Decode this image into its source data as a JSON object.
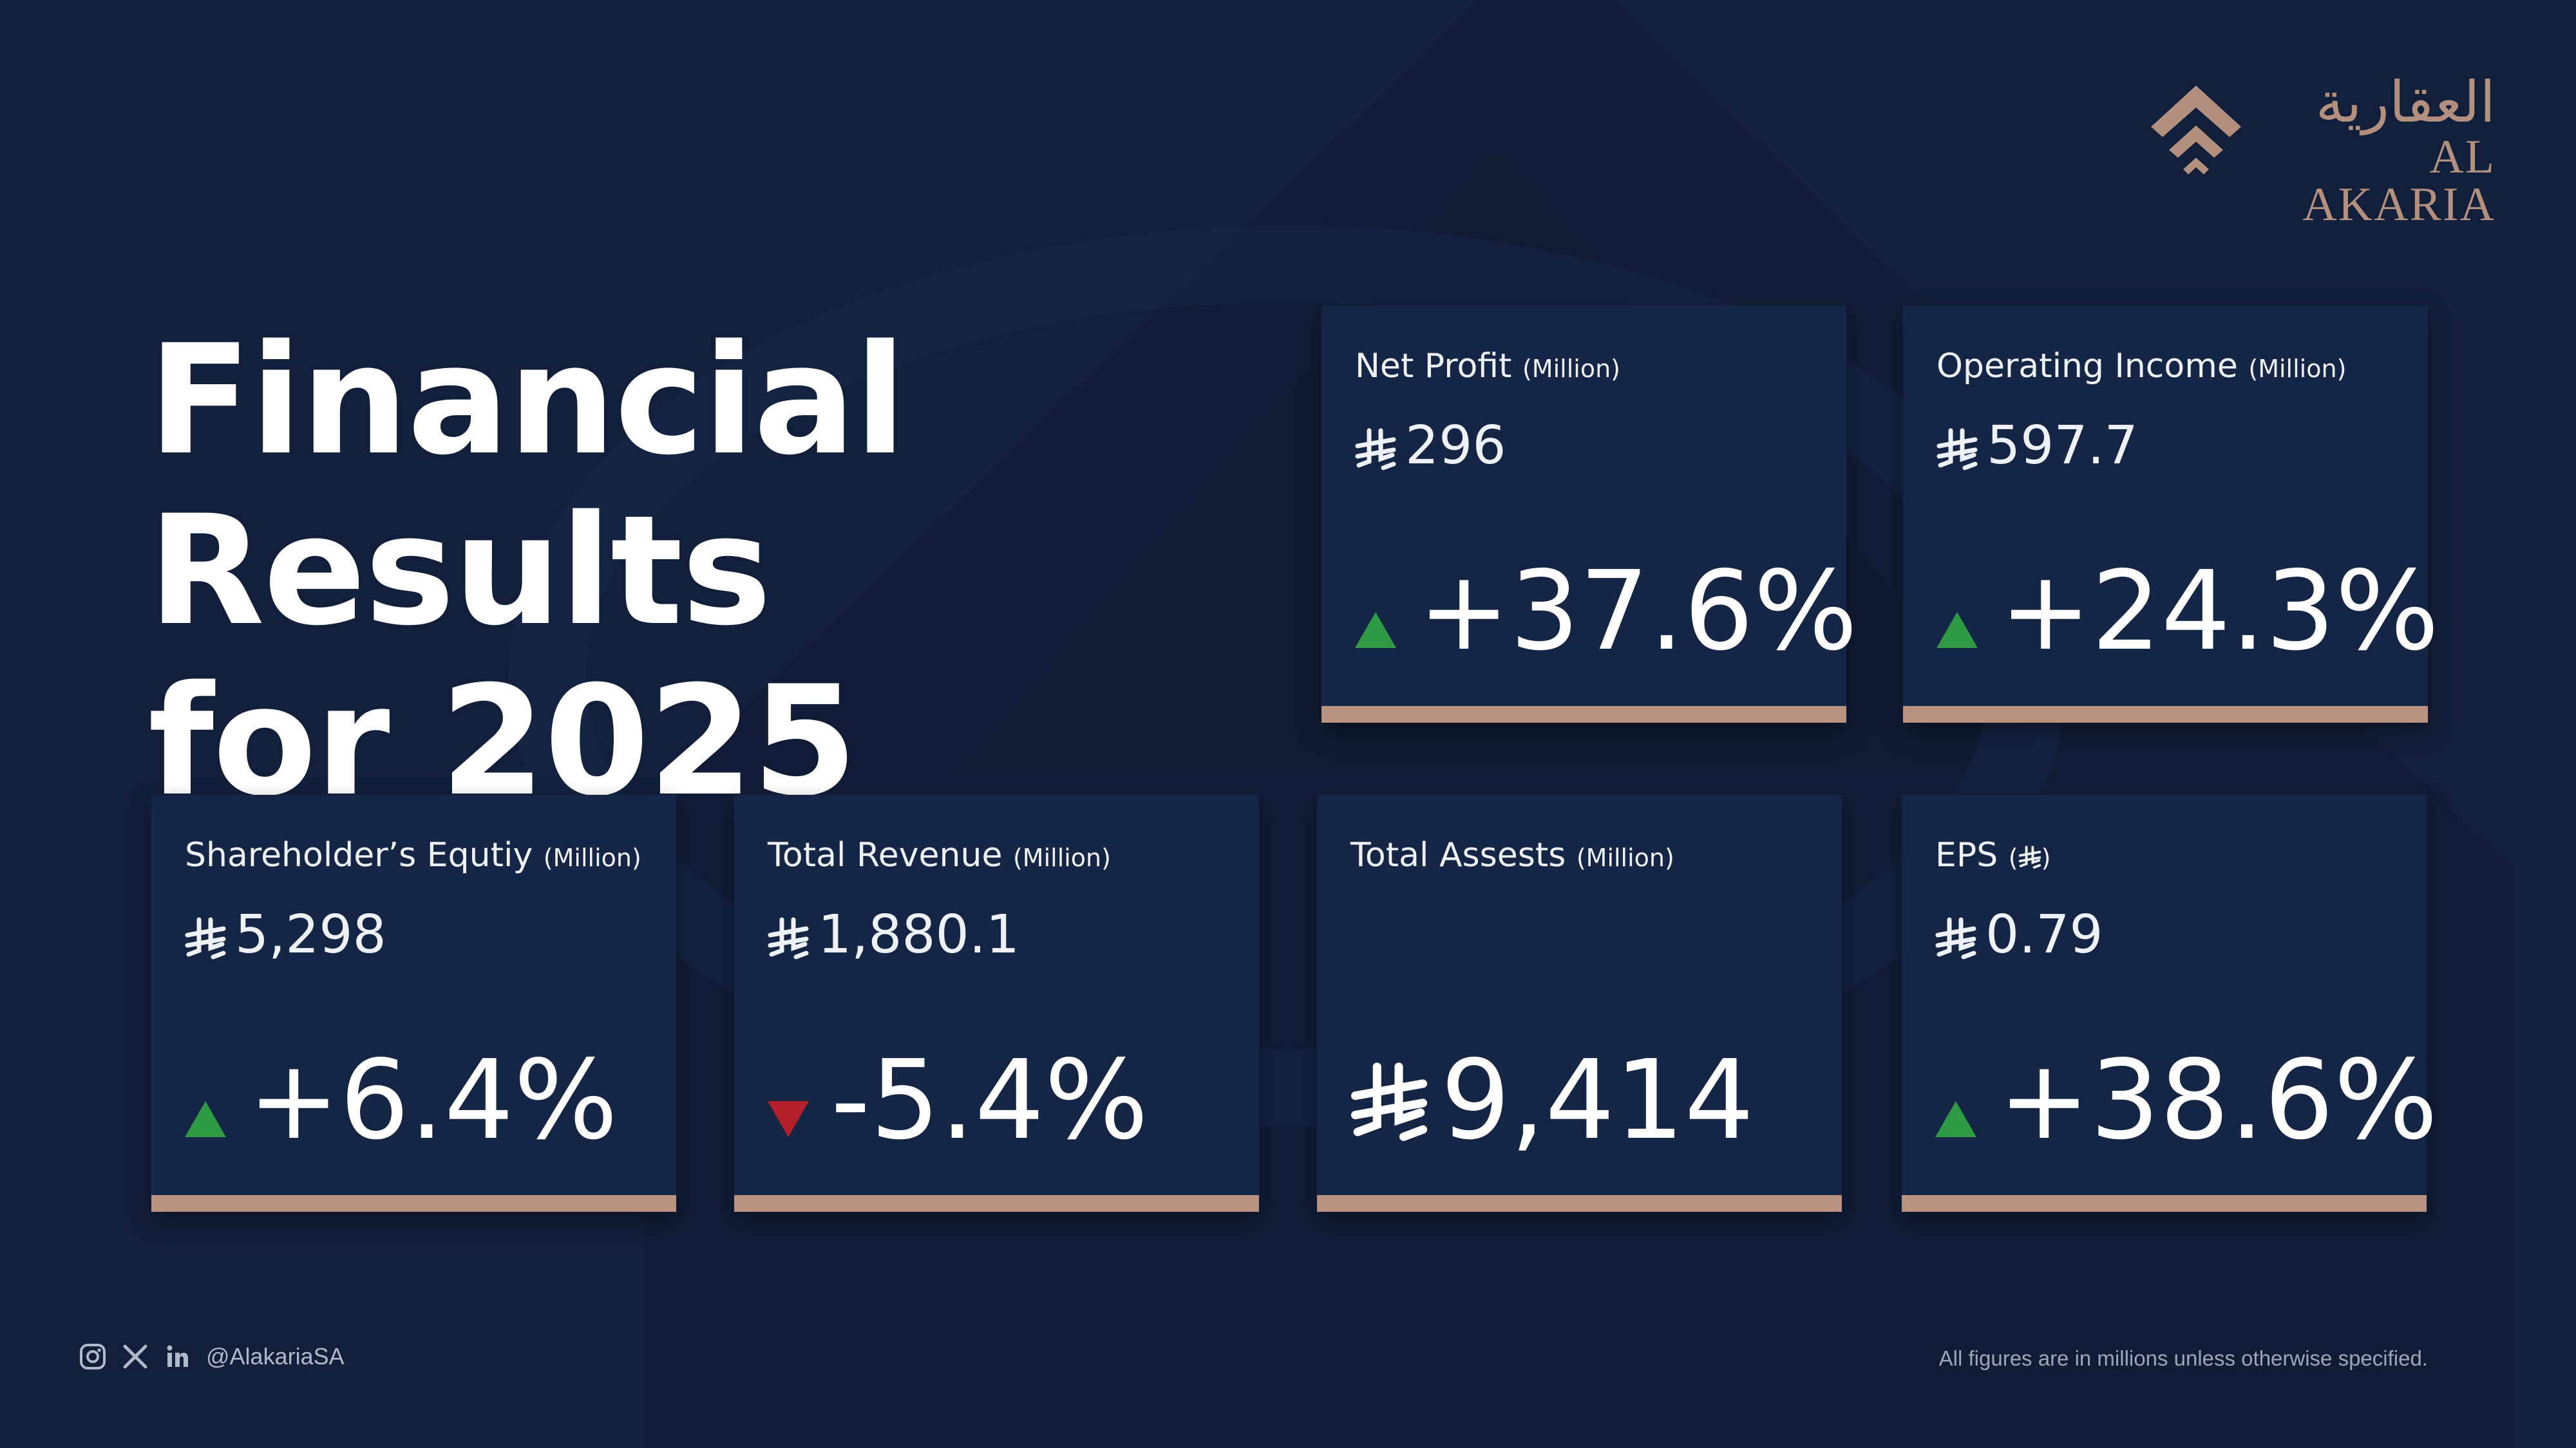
{
  "brand": {
    "name_ar": "العقارية",
    "name_en": "AL AKARIA",
    "logo_icon": "chevron-house-icon",
    "accent_color": "#b89382"
  },
  "title": {
    "line1": "Financial Results",
    "line2": "for 2025"
  },
  "currency_icon": "saudi-riyal-symbol-icon",
  "cards": {
    "net_profit": {
      "label": "Net Profit",
      "unit": "(Million)",
      "value": "296",
      "change": "+37.6%",
      "trend": "up"
    },
    "operating_income": {
      "label": "Operating Income",
      "unit": "(Million)",
      "value": "597.7",
      "change": "+24.3%",
      "trend": "up"
    },
    "equity": {
      "label": "Shareholder’s Equtiy",
      "unit": "(Million)",
      "value": "5,298",
      "change": "+6.4%",
      "trend": "up"
    },
    "revenue": {
      "label": "Total Revenue",
      "unit": "(Million)",
      "value": "1,880.1",
      "change": "-5.4%",
      "trend": "down"
    },
    "assets": {
      "label": "Total Assests",
      "unit": "(Million)",
      "value": "9,414"
    },
    "eps": {
      "label": "EPS",
      "unit_open": "(",
      "unit_close": ")",
      "value": "0.79",
      "change": "+38.6%",
      "trend": "up"
    }
  },
  "colors": {
    "up": "#2e9a44",
    "down": "#b3202a",
    "background": "#121f3a",
    "card": "#142546"
  },
  "footer": {
    "icons": [
      "instagram-icon",
      "x-icon",
      "linkedin-icon"
    ],
    "handle": "@AlakariaSA",
    "note": "All figures are in millions unless otherwise specified."
  }
}
